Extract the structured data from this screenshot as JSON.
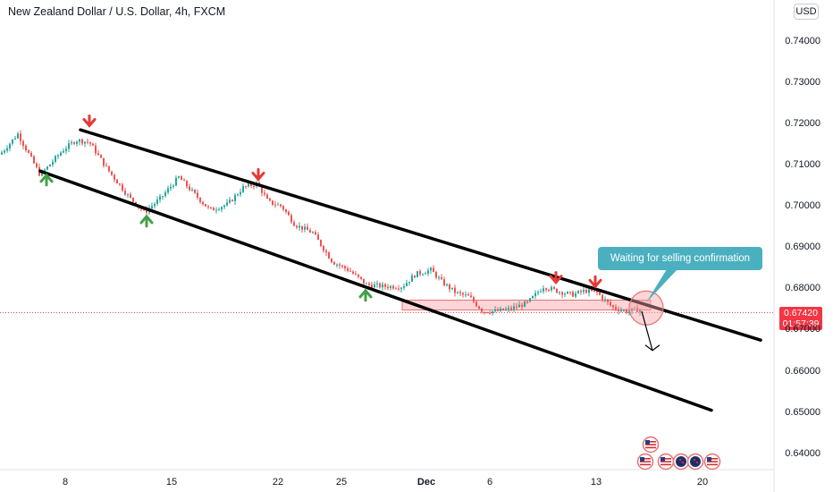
{
  "header": {
    "symbol_title": "New Zealand Dollar / U.S. Dollar, 4h, FXCM",
    "currency_badge": "USD"
  },
  "price_tag": {
    "price": "0.67420",
    "countdown": "01:57:39"
  },
  "annotation": {
    "text": "Waiting for selling confirmation"
  },
  "colors": {
    "up": "#26a69a",
    "down": "#ef5350",
    "channel": "#000000",
    "callout": "#4ab0bf",
    "price_line": "#f23645",
    "zone": "#f8b3b6"
  },
  "icons": [
    "green-up-arrow-icon",
    "red-down-arrow-icon",
    "us-flag-event-icon",
    "nz-flag-event-icon"
  ],
  "chart_data": {
    "type": "candlestick",
    "ylim": [
      0.635,
      0.745
    ],
    "y_ticks": [
      "0.74000",
      "0.73000",
      "0.72000",
      "0.71000",
      "0.70000",
      "0.69000",
      "0.68000",
      "0.67000",
      "0.66000",
      "0.65000",
      "0.64000"
    ],
    "y_tick_values": [
      0.74,
      0.73,
      0.72,
      0.71,
      0.7,
      0.69,
      0.68,
      0.67,
      0.66,
      0.65,
      0.64
    ],
    "x_ticks": [
      {
        "label": "8",
        "bold": false
      },
      {
        "label": "15",
        "bold": false
      },
      {
        "label": "22",
        "bold": false
      },
      {
        "label": "25",
        "bold": false
      },
      {
        "label": "Dec",
        "bold": true
      },
      {
        "label": "6",
        "bold": false
      },
      {
        "label": "13",
        "bold": false
      },
      {
        "label": "20",
        "bold": false
      }
    ],
    "anchors": [
      [
        0,
        0.7125
      ],
      [
        20,
        0.7175
      ],
      [
        45,
        0.7075
      ],
      [
        70,
        0.7135
      ],
      [
        85,
        0.716
      ],
      [
        100,
        0.7155
      ],
      [
        120,
        0.709
      ],
      [
        145,
        0.702
      ],
      [
        162,
        0.6985
      ],
      [
        180,
        0.702
      ],
      [
        200,
        0.707
      ],
      [
        215,
        0.7035
      ],
      [
        235,
        0.699
      ],
      [
        255,
        0.7005
      ],
      [
        272,
        0.7045
      ],
      [
        288,
        0.7055
      ],
      [
        300,
        0.701
      ],
      [
        315,
        0.7
      ],
      [
        330,
        0.6955
      ],
      [
        350,
        0.6935
      ],
      [
        372,
        0.6865
      ],
      [
        390,
        0.6845
      ],
      [
        410,
        0.681
      ],
      [
        430,
        0.6805
      ],
      [
        450,
        0.6805
      ],
      [
        465,
        0.6835
      ],
      [
        482,
        0.6845
      ],
      [
        495,
        0.6815
      ],
      [
        510,
        0.679
      ],
      [
        525,
        0.678
      ],
      [
        540,
        0.6745
      ],
      [
        555,
        0.6745
      ],
      [
        570,
        0.675
      ],
      [
        590,
        0.6765
      ],
      [
        608,
        0.6805
      ],
      [
        622,
        0.6795
      ],
      [
        640,
        0.6785
      ],
      [
        655,
        0.6795
      ],
      [
        668,
        0.679
      ],
      [
        685,
        0.6755
      ],
      [
        700,
        0.6745
      ],
      [
        718,
        0.675
      ]
    ],
    "channel_lines": [
      {
        "name": "upper",
        "from": {
          "bar": 90,
          "price": 0.7185
        },
        "to": {
          "bar": 851,
          "price": 0.6675
        }
      },
      {
        "name": "lower",
        "from": {
          "bar": 45,
          "price": 0.7085
        },
        "to": {
          "bar": 796,
          "price": 0.6505
        }
      }
    ],
    "zone": {
      "from_bar": 450,
      "to_bar": 728,
      "top": 0.6772,
      "bottom": 0.6748
    },
    "current_price": 0.6742,
    "projection": {
      "from": {
        "bar": 718,
        "price": 0.6745
      },
      "to": {
        "bar": 730,
        "price": 0.665
      }
    },
    "highlight_circle": {
      "bar": 723,
      "price": 0.6753
    },
    "pivots": [
      {
        "type": "low",
        "bar": 52,
        "price": 0.7075
      },
      {
        "type": "high",
        "bar": 100,
        "price": 0.7195
      },
      {
        "type": "low",
        "bar": 164,
        "price": 0.6975
      },
      {
        "type": "high",
        "bar": 289,
        "price": 0.7065
      },
      {
        "type": "low",
        "bar": 409,
        "price": 0.6795
      },
      {
        "type": "high",
        "bar": 622,
        "price": 0.6815
      },
      {
        "type": "high",
        "bar": 666,
        "price": 0.6805
      }
    ],
    "events": [
      {
        "flag": "us",
        "row": "top",
        "bar": 728
      },
      {
        "flag": "us",
        "row": "bottom",
        "bar": 722
      },
      {
        "flag": "us",
        "row": "bottom",
        "bar": 745
      },
      {
        "flag": "nz",
        "row": "bottom",
        "bar": 762
      },
      {
        "flag": "nz",
        "row": "bottom",
        "bar": 778
      },
      {
        "flag": "us",
        "row": "bottom",
        "bar": 797
      }
    ]
  }
}
